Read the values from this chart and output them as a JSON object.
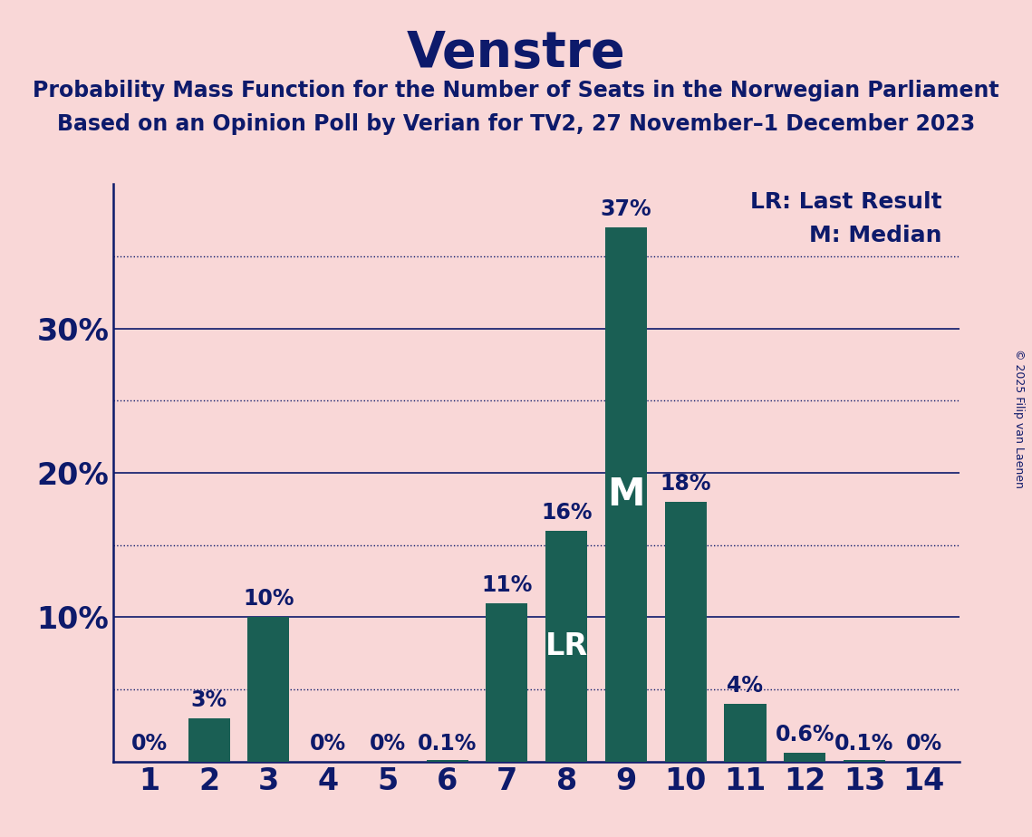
{
  "title": "Venstre",
  "subtitle_line1": "Probability Mass Function for the Number of Seats in the Norwegian Parliament",
  "subtitle_line2": "Based on an Opinion Poll by Verian for TV2, 27 November–1 December 2023",
  "categories": [
    1,
    2,
    3,
    4,
    5,
    6,
    7,
    8,
    9,
    10,
    11,
    12,
    13,
    14
  ],
  "values": [
    0.0,
    3.0,
    10.0,
    0.0,
    0.0,
    0.1,
    11.0,
    16.0,
    37.0,
    18.0,
    4.0,
    0.6,
    0.1,
    0.0
  ],
  "bar_color": "#1a5f54",
  "background_color": "#f9d7d7",
  "text_color": "#0d1a6b",
  "solid_line_yticks": [
    10,
    20,
    30
  ],
  "dotted_line_yticks": [
    5,
    15,
    25,
    35
  ],
  "ylim": [
    0,
    40
  ],
  "lr_bar": 8,
  "median_bar": 9,
  "legend_lr": "LR: Last Result",
  "legend_m": "M: Median",
  "copyright": "© 2025 Filip van Laenen",
  "label_values": [
    "0%",
    "3%",
    "10%",
    "0%",
    "0%",
    "0.1%",
    "11%",
    "16%",
    "37%",
    "18%",
    "4%",
    "0.6%",
    "0.1%",
    "0%"
  ]
}
